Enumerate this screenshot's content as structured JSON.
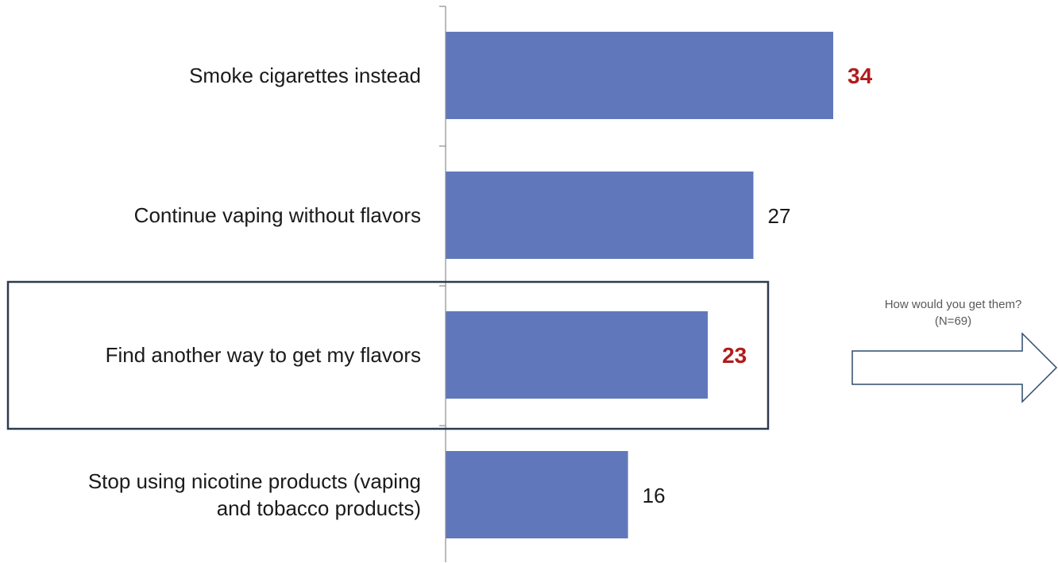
{
  "chart_data": {
    "type": "bar",
    "orientation": "horizontal",
    "categories": [
      [
        "Smoke cigarettes instead"
      ],
      [
        "Continue vaping without flavors"
      ],
      [
        "Find another way to get my flavors"
      ],
      [
        "Stop using nicotine products (vaping",
        "and tobacco products)"
      ]
    ],
    "values": [
      34,
      27,
      23,
      16
    ],
    "highlighted_values": [
      true,
      false,
      true,
      false
    ],
    "bar_color": "#6078bb",
    "highlight_color": "#b01c1c",
    "highlight_box_category_index": 2
  },
  "callout": {
    "line1": "How would you get them?",
    "line2": "(N=69)"
  }
}
